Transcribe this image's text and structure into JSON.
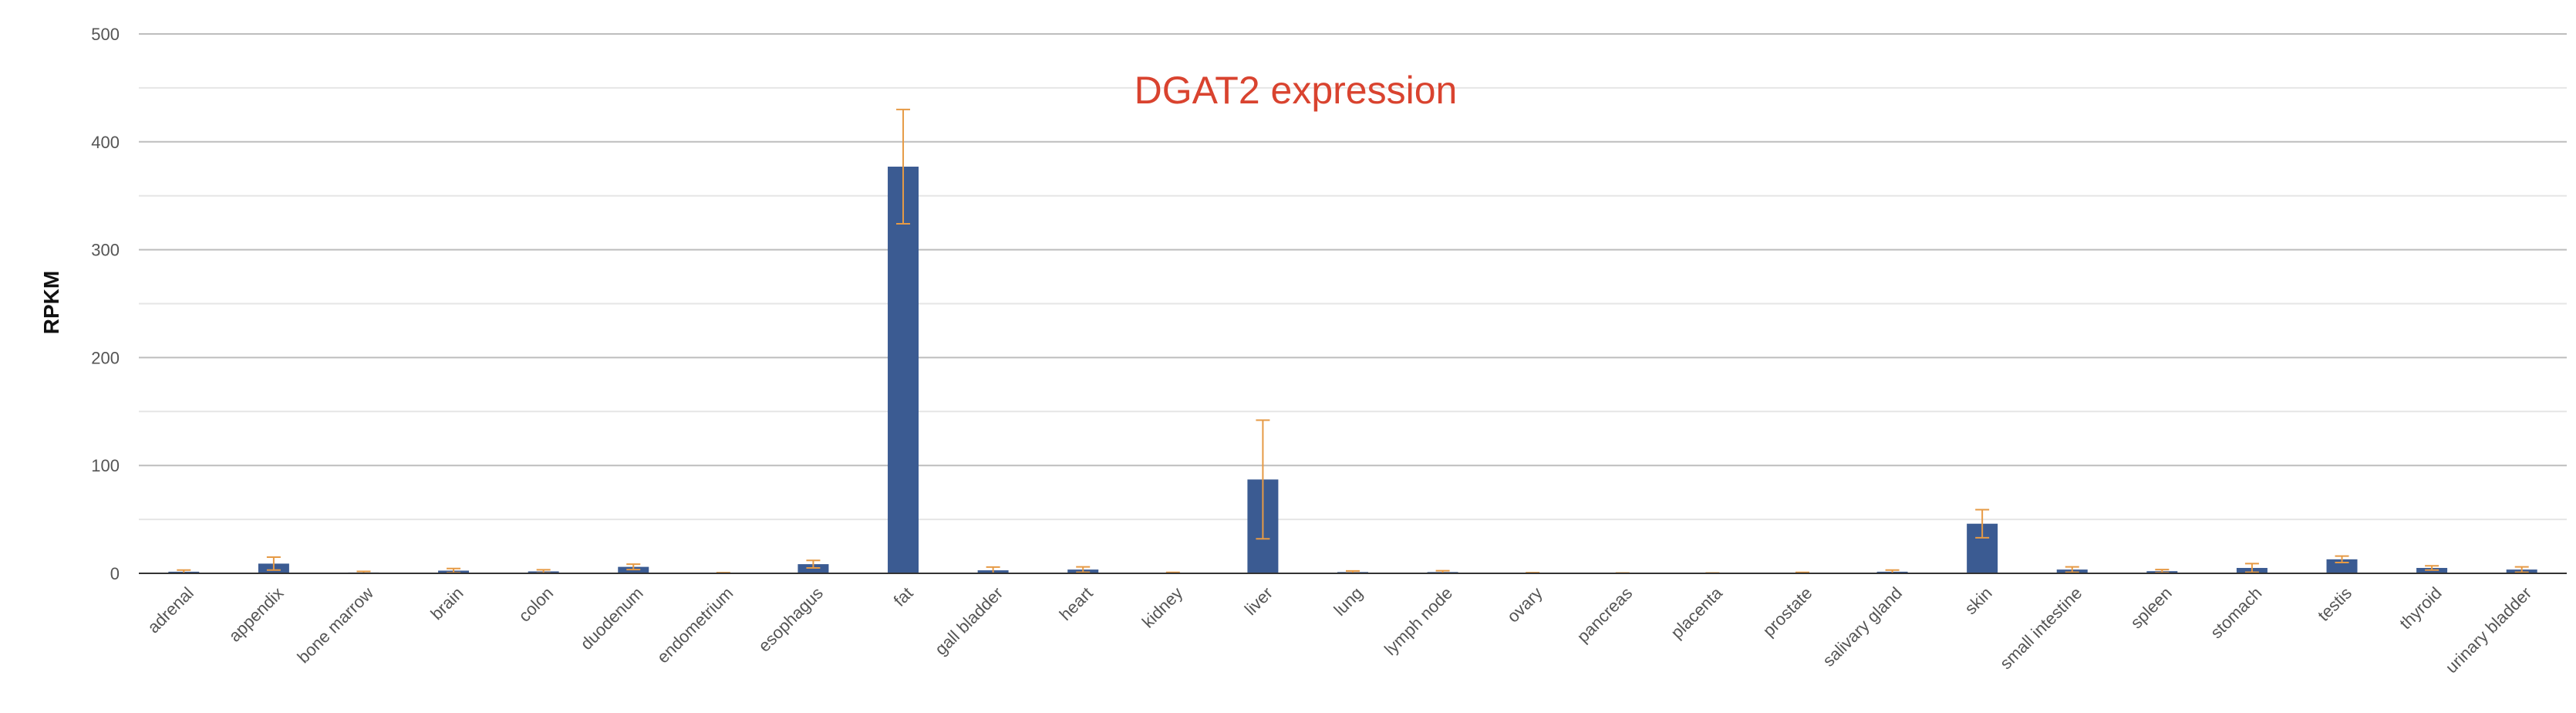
{
  "chart_data": {
    "type": "bar",
    "title": "DGAT2 expression",
    "ylabel": "RPKM",
    "xlabel": "",
    "ylim": [
      0,
      500
    ],
    "yticks": [
      0,
      100,
      200,
      300,
      400,
      500
    ],
    "grid": true,
    "legend": "none",
    "categories": [
      "adrenal",
      "appendix",
      "bone marrow",
      "brain",
      "colon",
      "duodenum",
      "endometrium",
      "esophagus",
      "fat",
      "gall bladder",
      "heart",
      "kidney",
      "liver",
      "lung",
      "lymph node",
      "ovary",
      "pancreas",
      "placenta",
      "prostate",
      "salivary gland",
      "skin",
      "small intestine",
      "spleen",
      "stomach",
      "testis",
      "thyroid",
      "urinary bladder"
    ],
    "values": [
      1.5,
      9,
      0.8,
      2.5,
      1.8,
      6,
      0.3,
      8.5,
      377,
      2.8,
      3.5,
      0.4,
      87,
      1.2,
      1.2,
      0.3,
      0.2,
      0.2,
      0.5,
      1.5,
      46,
      3.5,
      2,
      5,
      13,
      5,
      3.5
    ],
    "errors": [
      1.5,
      6,
      1,
      2,
      1.5,
      2.5,
      0.3,
      3.5,
      53,
      3,
      2.5,
      0.5,
      55,
      1,
      1.2,
      0.3,
      0.2,
      0.2,
      0.4,
      1.5,
      13,
      2.5,
      1.5,
      4,
      3,
      2,
      2.5
    ]
  },
  "colors": {
    "bar": "#3b5b92",
    "error_bar": "#e69a45",
    "title": "#d9432f",
    "grid_major": "#bdbdbd",
    "grid_minor": "#e6e6e6",
    "axis": "#333333"
  }
}
